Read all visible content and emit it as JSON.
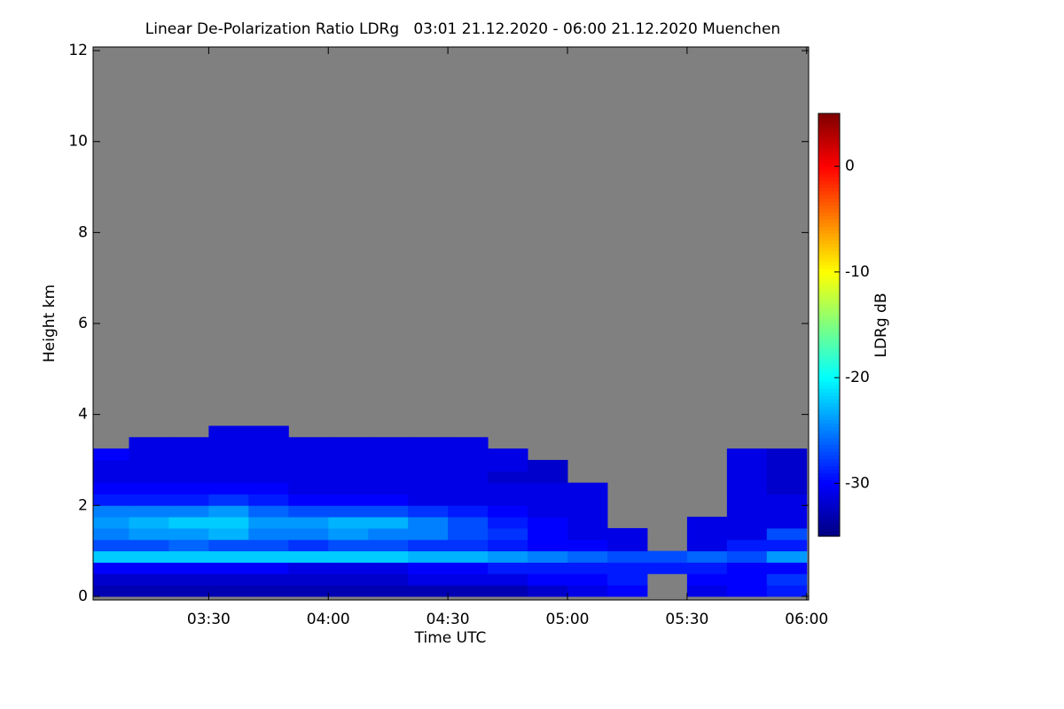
{
  "chart_data": {
    "type": "heatmap",
    "title": "Linear De-Polarization Ratio LDRg   03:01 21.12.2020 - 06:00 21.12.2020 Muenchen",
    "x_label": "Time UTC",
    "y_label": "Height km",
    "colorbar_label": "LDRg dB",
    "xlim": [
      181,
      360.5
    ],
    "xticks": [
      {
        "value": 210,
        "label": "03:30"
      },
      {
        "value": 240,
        "label": "04:00"
      },
      {
        "value": 270,
        "label": "04:30"
      },
      {
        "value": 300,
        "label": "05:00"
      },
      {
        "value": 330,
        "label": "05:30"
      },
      {
        "value": 360,
        "label": "06:00"
      }
    ],
    "ylim": [
      -0.08,
      12.08
    ],
    "yticks": [
      0,
      2,
      4,
      6,
      8,
      10,
      12
    ],
    "clim": [
      -35,
      5
    ],
    "cticks": [
      0,
      -10,
      -20,
      -30
    ],
    "colormap": "jet",
    "background": "#808080",
    "x": [
      185,
      195,
      205,
      215,
      225,
      235,
      245,
      255,
      265,
      275,
      285,
      295,
      305,
      315,
      325,
      335,
      345,
      355
    ],
    "y": [
      0.125,
      0.375,
      0.625,
      0.875,
      1.125,
      1.375,
      1.625,
      1.875,
      2.125,
      2.375,
      2.625,
      2.875,
      3.125,
      3.375,
      3.625
    ],
    "z": [
      [
        -33,
        -33,
        -33,
        -33,
        -33,
        -33,
        -33,
        -33,
        -33,
        -33,
        -33,
        -32,
        -31,
        -30,
        null,
        -31,
        -30,
        -29
      ],
      [
        -32,
        -32,
        -32,
        -32,
        -32,
        -32,
        -32,
        -32,
        -31,
        -31,
        -31,
        -30,
        -30,
        -29,
        null,
        -30,
        -30,
        -28
      ],
      [
        -30,
        -30,
        -30,
        -30,
        -30,
        -31,
        -31,
        -31,
        -30,
        -30,
        -29,
        -29,
        -29,
        -29,
        -29,
        -29,
        -30,
        -30
      ],
      [
        -22,
        -22,
        -22,
        -22,
        -22,
        -22,
        -22,
        -22,
        -23,
        -23,
        -24,
        -25,
        -26,
        -27,
        -27,
        -26,
        -27,
        -24
      ],
      [
        -27,
        -27,
        -26,
        -27,
        -27,
        -28,
        -27,
        -27,
        -28,
        -28,
        -29,
        -30,
        -30,
        -31,
        null,
        -31,
        -29,
        -29
      ],
      [
        -25,
        -24,
        -24,
        -23,
        -25,
        -25,
        -24,
        -25,
        -25,
        -27,
        -28,
        -30,
        -31,
        -31,
        null,
        -31,
        -31,
        -27
      ],
      [
        -24,
        -23,
        -22,
        -22,
        -24,
        -24,
        -23,
        -23,
        -25,
        -27,
        -29,
        -30,
        -31,
        null,
        null,
        -31,
        -31,
        -31
      ],
      [
        -25,
        -25,
        -25,
        -24,
        -26,
        -27,
        -27,
        -27,
        -28,
        -29,
        -30,
        -31,
        -31,
        null,
        null,
        null,
        -31,
        -31
      ],
      [
        -29,
        -29,
        -29,
        -28,
        -29,
        -30,
        -30,
        -30,
        -31,
        -31,
        -31,
        -31,
        -31,
        null,
        null,
        null,
        -31,
        -31
      ],
      [
        -30,
        -30,
        -30,
        -30,
        -30,
        -31,
        -31,
        -31,
        -31,
        -31,
        -31,
        -31,
        -31,
        null,
        null,
        null,
        -31,
        -32
      ],
      [
        -31,
        -31,
        -31,
        -31,
        -31,
        -31,
        -31,
        -31,
        -31,
        -31,
        -32,
        -32,
        null,
        null,
        null,
        null,
        -31,
        -32
      ],
      [
        -31,
        -31,
        -31,
        -31,
        -31,
        -31,
        -31,
        -31,
        -31,
        -31,
        -31,
        -32,
        null,
        null,
        null,
        null,
        -31,
        -32
      ],
      [
        -30,
        -31,
        -31,
        -31,
        -31,
        -31,
        -31,
        -31,
        -31,
        -31,
        -31,
        null,
        null,
        null,
        null,
        null,
        -31,
        -32
      ],
      [
        null,
        -31,
        -31,
        -31,
        -31,
        -31,
        -31,
        -31,
        -31,
        -31,
        null,
        null,
        null,
        null,
        null,
        null,
        null,
        null
      ],
      [
        null,
        null,
        null,
        -31,
        -31,
        null,
        null,
        null,
        null,
        null,
        null,
        null,
        null,
        null,
        null,
        null,
        null,
        null
      ]
    ]
  }
}
